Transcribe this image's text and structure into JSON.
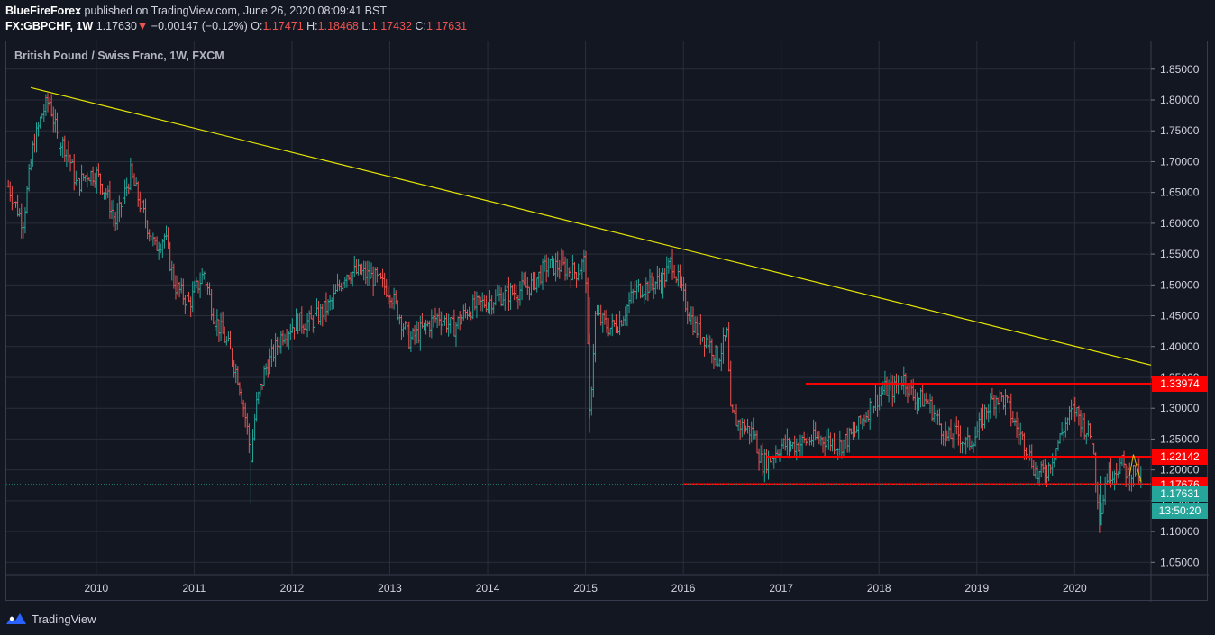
{
  "header": {
    "author": "BlueFireForex",
    "published": "published on TradingView.com, June 26, 2020 08:09:41 BST",
    "symbol": "FX:GBPCHF, 1W",
    "last": "1.17630",
    "change": "−0.00147 (−0.12%)",
    "open_label": "O:",
    "open": "1.17471",
    "high_label": "H:",
    "high": "1.18468",
    "low_label": "L:",
    "low": "1.17432",
    "close_label": "C:",
    "close": "1.17631"
  },
  "legend_title": "British Pound / Swiss Franc, 1W, FXCM",
  "footer": {
    "brand": "TradingView",
    "logo_icon": "tradingview-logo-icon"
  },
  "colors": {
    "background": "#131722",
    "grid": "#2a2e39",
    "up": "#26a69a",
    "down": "#ef5350",
    "trendline": "#e6e600",
    "level": "#ff0000",
    "current": "#26a69a"
  },
  "price_labels": {
    "level_high": "1.33974",
    "level_mid": "1.22142",
    "level_low": "1.17676",
    "current": "1.17631",
    "countdown": "13:50:20"
  },
  "chart_data": {
    "type": "ohlc-bar",
    "title": "British Pound / Swiss Franc, 1W, FXCM",
    "y_ticks": [
      "1.85000",
      "1.80000",
      "1.75000",
      "1.70000",
      "1.65000",
      "1.60000",
      "1.55000",
      "1.50000",
      "1.45000",
      "1.40000",
      "1.35000",
      "1.30000",
      "1.25000",
      "1.20000",
      "1.15000",
      "1.10000",
      "1.05000"
    ],
    "x_ticks": [
      "2010",
      "2011",
      "2012",
      "2013",
      "2014",
      "2015",
      "2016",
      "2017",
      "2018",
      "2019",
      "2020"
    ],
    "ylim": [
      1.03,
      1.895
    ],
    "xlim": [
      2009.08,
      2020.78
    ],
    "grid": true,
    "price_path": [
      [
        2009.1,
        1.66
      ],
      [
        2009.25,
        1.6
      ],
      [
        2009.35,
        1.72
      ],
      [
        2009.45,
        1.78
      ],
      [
        2009.52,
        1.8
      ],
      [
        2009.6,
        1.74
      ],
      [
        2009.7,
        1.72
      ],
      [
        2009.8,
        1.66
      ],
      [
        2009.9,
        1.68
      ],
      [
        2010.0,
        1.68
      ],
      [
        2010.1,
        1.65
      ],
      [
        2010.2,
        1.6
      ],
      [
        2010.35,
        1.68
      ],
      [
        2010.45,
        1.63
      ],
      [
        2010.6,
        1.56
      ],
      [
        2010.7,
        1.58
      ],
      [
        2010.8,
        1.5
      ],
      [
        2010.95,
        1.47
      ],
      [
        2011.1,
        1.52
      ],
      [
        2011.2,
        1.45
      ],
      [
        2011.35,
        1.4
      ],
      [
        2011.45,
        1.35
      ],
      [
        2011.53,
        1.28
      ],
      [
        2011.58,
        1.22
      ],
      [
        2011.63,
        1.3
      ],
      [
        2011.72,
        1.36
      ],
      [
        2011.9,
        1.42
      ],
      [
        2012.05,
        1.44
      ],
      [
        2012.2,
        1.44
      ],
      [
        2012.4,
        1.47
      ],
      [
        2012.55,
        1.52
      ],
      [
        2012.7,
        1.52
      ],
      [
        2012.85,
        1.51
      ],
      [
        2013.0,
        1.49
      ],
      [
        2013.1,
        1.45
      ],
      [
        2013.2,
        1.41
      ],
      [
        2013.35,
        1.43
      ],
      [
        2013.5,
        1.45
      ],
      [
        2013.65,
        1.43
      ],
      [
        2013.8,
        1.46
      ],
      [
        2013.95,
        1.47
      ],
      [
        2014.1,
        1.48
      ],
      [
        2014.3,
        1.49
      ],
      [
        2014.45,
        1.5
      ],
      [
        2014.6,
        1.53
      ],
      [
        2014.75,
        1.53
      ],
      [
        2014.9,
        1.52
      ],
      [
        2015.0,
        1.54
      ],
      [
        2015.04,
        1.28
      ],
      [
        2015.1,
        1.45
      ],
      [
        2015.25,
        1.43
      ],
      [
        2015.35,
        1.44
      ],
      [
        2015.5,
        1.49
      ],
      [
        2015.65,
        1.5
      ],
      [
        2015.8,
        1.51
      ],
      [
        2015.88,
        1.54
      ],
      [
        2016.0,
        1.48
      ],
      [
        2016.12,
        1.43
      ],
      [
        2016.25,
        1.41
      ],
      [
        2016.35,
        1.38
      ],
      [
        2016.45,
        1.42
      ],
      [
        2016.48,
        1.29
      ],
      [
        2016.6,
        1.27
      ],
      [
        2016.72,
        1.26
      ],
      [
        2016.8,
        1.21
      ],
      [
        2016.9,
        1.22
      ],
      [
        2017.0,
        1.24
      ],
      [
        2017.15,
        1.24
      ],
      [
        2017.3,
        1.25
      ],
      [
        2017.45,
        1.25
      ],
      [
        2017.6,
        1.24
      ],
      [
        2017.75,
        1.26
      ],
      [
        2017.9,
        1.3
      ],
      [
        2018.05,
        1.33
      ],
      [
        2018.15,
        1.33
      ],
      [
        2018.25,
        1.35
      ],
      [
        2018.35,
        1.32
      ],
      [
        2018.5,
        1.31
      ],
      [
        2018.6,
        1.28
      ],
      [
        2018.7,
        1.25
      ],
      [
        2018.8,
        1.26
      ],
      [
        2018.9,
        1.24
      ],
      [
        2019.0,
        1.26
      ],
      [
        2019.1,
        1.3
      ],
      [
        2019.2,
        1.32
      ],
      [
        2019.3,
        1.31
      ],
      [
        2019.4,
        1.27
      ],
      [
        2019.5,
        1.24
      ],
      [
        2019.62,
        1.19
      ],
      [
        2019.72,
        1.2
      ],
      [
        2019.82,
        1.24
      ],
      [
        2019.92,
        1.28
      ],
      [
        2020.0,
        1.3
      ],
      [
        2020.1,
        1.27
      ],
      [
        2020.18,
        1.25
      ],
      [
        2020.22,
        1.18
      ],
      [
        2020.26,
        1.12
      ],
      [
        2020.32,
        1.19
      ],
      [
        2020.4,
        1.2
      ],
      [
        2020.48,
        1.21
      ],
      [
        2020.55,
        1.19
      ],
      [
        2020.62,
        1.2
      ],
      [
        2020.68,
        1.18
      ]
    ],
    "trendline": [
      [
        2009.33,
        1.82
      ],
      [
        2020.78,
        1.37
      ]
    ],
    "levels": [
      {
        "price": 1.33974,
        "from": 2017.25,
        "to": 2020.78
      },
      {
        "price": 1.22142,
        "from": 2016.85,
        "to": 2020.78
      },
      {
        "price": 1.17676,
        "from": 2016.0,
        "to": 2020.78
      }
    ],
    "current_price": 1.17631
  }
}
